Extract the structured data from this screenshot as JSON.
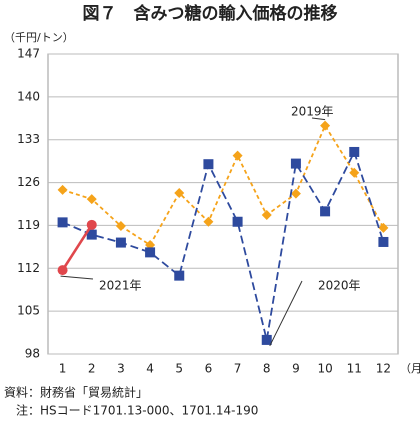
{
  "chart_data": {
    "type": "line",
    "title": "図７　含みつ糖の輸入価格の推移",
    "y_axis_label": "（千円/トン）",
    "x_axis_label": "（月）",
    "categories": [
      "1",
      "2",
      "3",
      "4",
      "5",
      "6",
      "7",
      "8",
      "9",
      "10",
      "11",
      "12"
    ],
    "series": [
      {
        "name": "2019年",
        "color": "#f5a31a",
        "marker": "diamond",
        "dashed": true,
        "values": [
          124.8,
          123.3,
          118.9,
          115.8,
          124.3,
          119.6,
          130.4,
          120.7,
          124.2,
          135.3,
          127.6,
          118.6
        ]
      },
      {
        "name": "2020年",
        "color": "#2e4a9e",
        "marker": "square",
        "dashed": true,
        "values": [
          119.5,
          117.5,
          116.2,
          114.6,
          110.8,
          129.0,
          119.6,
          100.3,
          129.1,
          121.3,
          131.0,
          116.3
        ]
      },
      {
        "name": "2021年",
        "color": "#e0474c",
        "marker": "circle",
        "dashed": false,
        "values": [
          111.7,
          119.1,
          null,
          null,
          null,
          null,
          null,
          null,
          null,
          null,
          null,
          null
        ]
      }
    ],
    "ylim": [
      98,
      147
    ],
    "yticks": [
      98,
      105,
      112,
      119,
      126,
      133,
      140,
      147
    ],
    "grid": true,
    "source": "資料：財務省「貿易統計」",
    "note": "注：HSコード1701.13-000、1701.14-190"
  }
}
